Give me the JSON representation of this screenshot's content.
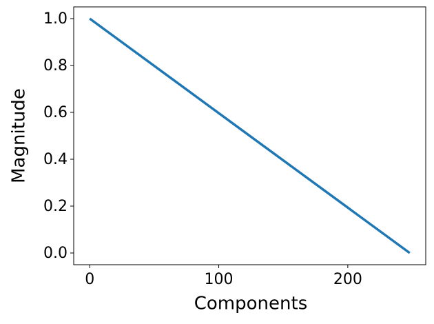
{
  "chart_data": {
    "type": "line",
    "x_label": "Components",
    "y_label": "Magnitude",
    "x": [
      0,
      248
    ],
    "series": [
      {
        "name": "magnitude",
        "color": "#1f77b4",
        "values": [
          1.0,
          0.0
        ]
      }
    ],
    "xlim": [
      -12.4,
      260.4
    ],
    "xticks": [
      0,
      100,
      200
    ],
    "ylim": [
      -0.05,
      1.05
    ],
    "yticks": [
      {
        "value": 0,
        "label": "0.0"
      },
      0.2,
      0.4,
      0.6,
      0.8,
      {
        "value": 1,
        "label": "1.0"
      }
    ],
    "grid": false
  }
}
